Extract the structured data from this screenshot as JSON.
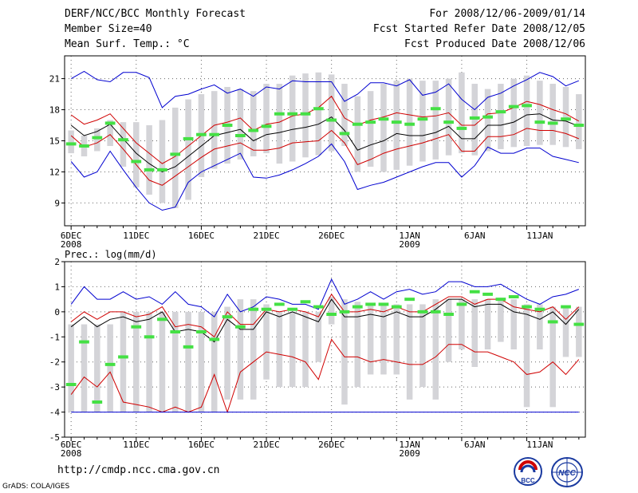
{
  "header": {
    "title": "DERF/NCC/BCC Monthly Forecast",
    "member_size": "Member Size=40",
    "variable": "Mean Surf. Temp.: °C",
    "period": "For 2008/12/06-2009/01/14",
    "refer_date": "Fcst Started Refer Date 2008/12/05",
    "produced_date": "Fcst Produced Date 2008/12/06"
  },
  "footer": {
    "url": "http://cmdp.ncc.cma.gov.cn",
    "grads": "GrADS: COLA/IGES",
    "logo_bcc": "BCC",
    "logo_ncc": "NCC"
  },
  "colors": {
    "box": "#d4d4d8",
    "median": "#44e044",
    "mean": "#000000",
    "spread": "#d00000",
    "extreme": "#0000d0"
  },
  "chart_data": [
    {
      "type": "line",
      "title": "Mean Surf. Temp.: °C",
      "ylabel": "°C",
      "x": [
        1,
        2,
        3,
        4,
        5,
        6,
        7,
        8,
        9,
        10,
        11,
        12,
        13,
        14,
        15,
        16,
        17,
        18,
        19,
        20,
        21,
        22,
        23,
        24,
        25,
        26,
        27,
        28,
        29,
        30,
        31,
        32,
        33,
        34,
        35,
        36,
        37,
        38,
        39,
        40
      ],
      "xlim": [
        0.5,
        40.5
      ],
      "ylim": [
        6.8,
        23.2
      ],
      "yticks": [
        9,
        12,
        15,
        18,
        21
      ],
      "xticks": [
        {
          "x": 1,
          "label": "6DEC",
          "sub": "2008"
        },
        {
          "x": 6,
          "label": "11DEC"
        },
        {
          "x": 11,
          "label": "16DEC"
        },
        {
          "x": 16,
          "label": "21DEC"
        },
        {
          "x": 21,
          "label": "26DEC"
        },
        {
          "x": 27,
          "label": "1JAN",
          "sub": "2009"
        },
        {
          "x": 32,
          "label": "6JAN"
        },
        {
          "x": 37,
          "label": "11JAN"
        }
      ],
      "box": {
        "low": [
          13.8,
          13.5,
          14.0,
          14.5,
          12.5,
          10.5,
          9.8,
          9.0,
          8.5,
          9.3,
          11.5,
          12.3,
          12.8,
          13.2,
          13.5,
          13.8,
          12.8,
          13.0,
          13.4,
          13.6,
          14.0,
          14.5,
          12.0,
          12.5,
          12.0,
          12.2,
          12.6,
          13.0,
          13.2,
          13.6,
          13.8,
          13.6,
          14.0,
          14.2,
          14.4,
          14.5,
          14.6,
          14.6,
          14.4,
          14.2
        ],
        "high": [
          16.0,
          15.5,
          16.2,
          17.0,
          16.8,
          16.8,
          16.5,
          17.0,
          18.2,
          19.0,
          19.5,
          19.8,
          20.2,
          20.0,
          19.8,
          20.5,
          20.5,
          21.3,
          21.5,
          21.6,
          21.4,
          20.5,
          19.3,
          19.8,
          20.5,
          20.8,
          21.0,
          20.8,
          20.8,
          21.0,
          21.6,
          20.5,
          20.0,
          20.5,
          21.0,
          21.3,
          20.8,
          20.5,
          20.2,
          19.5
        ]
      },
      "series": [
        {
          "name": "max",
          "color": "#0000d0",
          "values": [
            21.0,
            21.7,
            20.9,
            20.7,
            21.6,
            21.6,
            21.1,
            18.2,
            19.3,
            19.5,
            20.0,
            20.4,
            19.6,
            20.0,
            19.3,
            20.2,
            20.0,
            20.8,
            20.7,
            20.7,
            20.7,
            18.8,
            19.5,
            20.6,
            20.6,
            20.3,
            20.9,
            19.4,
            19.7,
            20.5,
            19.0,
            18.0,
            19.2,
            19.6,
            20.3,
            20.9,
            21.6,
            21.2,
            20.3,
            20.8
          ]
        },
        {
          "name": "mean_plus_sd",
          "color": "#d00000",
          "values": [
            17.5,
            16.6,
            17.0,
            17.6,
            16.2,
            14.8,
            13.8,
            12.8,
            13.5,
            14.5,
            15.5,
            16.5,
            16.8,
            17.2,
            16.0,
            16.6,
            16.8,
            17.4,
            17.6,
            18.2,
            19.3,
            17.2,
            16.5,
            17.0,
            17.3,
            17.7,
            17.5,
            17.3,
            17.4,
            17.7,
            16.5,
            16.5,
            17.6,
            17.7,
            18.2,
            18.8,
            18.5,
            18.0,
            17.6,
            16.9
          ]
        },
        {
          "name": "mean",
          "color": "#000000",
          "values": [
            16.5,
            15.5,
            15.9,
            16.6,
            15.2,
            13.8,
            12.8,
            12.0,
            12.5,
            13.5,
            14.5,
            15.5,
            15.8,
            16.1,
            15.0,
            15.6,
            15.8,
            16.1,
            16.3,
            16.6,
            17.3,
            16.0,
            14.1,
            14.6,
            15.0,
            15.7,
            15.5,
            15.5,
            15.8,
            16.4,
            15.2,
            15.2,
            16.5,
            16.5,
            16.8,
            17.5,
            17.6,
            17.0,
            16.9,
            16.4
          ]
        },
        {
          "name": "mean_minus_sd",
          "color": "#d00000",
          "values": [
            15.5,
            14.4,
            14.8,
            15.6,
            14.2,
            12.7,
            11.2,
            10.7,
            11.6,
            12.5,
            13.4,
            14.2,
            14.5,
            14.8,
            14.1,
            14.1,
            14.3,
            14.8,
            14.9,
            15.0,
            16.0,
            14.8,
            12.7,
            13.2,
            13.8,
            14.2,
            14.5,
            14.8,
            15.2,
            15.6,
            14.0,
            14.0,
            15.4,
            15.4,
            15.6,
            16.2,
            16.0,
            16.0,
            15.7,
            15.2
          ]
        },
        {
          "name": "min",
          "color": "#0000d0",
          "values": [
            13.0,
            11.5,
            12.0,
            14.0,
            12.2,
            10.5,
            9.0,
            8.3,
            8.6,
            11.0,
            12.0,
            12.6,
            13.2,
            13.8,
            11.5,
            11.4,
            11.7,
            12.2,
            12.8,
            13.5,
            14.7,
            13.0,
            10.3,
            10.7,
            11.0,
            11.5,
            12.0,
            12.5,
            12.9,
            12.9,
            11.5,
            12.6,
            14.4,
            13.8,
            13.8,
            14.3,
            14.3,
            13.5,
            13.2,
            12.9
          ]
        }
      ],
      "median": [
        14.7,
        14.5,
        15.3,
        16.7,
        15.1,
        13.0,
        12.2,
        12.2,
        13.7,
        15.2,
        15.6,
        15.6,
        16.5,
        15.5,
        16.0,
        16.4,
        17.6,
        17.6,
        17.6,
        18.1,
        17.0,
        15.7,
        16.6,
        16.8,
        17.1,
        16.8,
        16.6,
        17.1,
        18.1,
        16.8,
        16.2,
        17.2,
        17.3,
        17.8,
        18.3,
        18.4,
        16.8,
        16.7,
        17.1,
        16.5
      ]
    },
    {
      "type": "line",
      "title": "Prec.: log(mm/d)",
      "ylabel": "log(mm/d)",
      "x": [
        1,
        2,
        3,
        4,
        5,
        6,
        7,
        8,
        9,
        10,
        11,
        12,
        13,
        14,
        15,
        16,
        17,
        18,
        19,
        20,
        21,
        22,
        23,
        24,
        25,
        26,
        27,
        28,
        29,
        30,
        31,
        32,
        33,
        34,
        35,
        36,
        37,
        38,
        39,
        40
      ],
      "xlim": [
        0.5,
        40.5
      ],
      "ylim": [
        -5,
        2
      ],
      "yticks": [
        -5,
        -4,
        -3,
        -2,
        -1,
        0,
        1,
        2
      ],
      "xticks": [
        {
          "x": 1,
          "label": "6DEC",
          "sub": "2008"
        },
        {
          "x": 6,
          "label": "11DEC"
        },
        {
          "x": 11,
          "label": "16DEC"
        },
        {
          "x": 16,
          "label": "21DEC"
        },
        {
          "x": 21,
          "label": "26DEC"
        },
        {
          "x": 27,
          "label": "1JAN",
          "sub": "2009"
        },
        {
          "x": 32,
          "label": "6JAN"
        },
        {
          "x": 37,
          "label": "11JAN"
        }
      ],
      "box": {
        "low": [
          -4.0,
          -4.0,
          -4.0,
          -4.0,
          -4.0,
          -4.0,
          -4.0,
          -4.0,
          -4.0,
          -4.0,
          -4.0,
          -4.0,
          -3.5,
          -3.5,
          -3.5,
          -2.7,
          -3.0,
          -3.0,
          -3.0,
          -2.0,
          -0.5,
          -3.7,
          -3.0,
          -2.5,
          -2.5,
          -2.5,
          -3.5,
          -3.0,
          -3.5,
          -2.0,
          -1.5,
          -2.2,
          -1.5,
          -1.2,
          -1.5,
          -3.8,
          -1.5,
          -3.8,
          -1.8,
          -1.8
        ],
        "high": [
          -0.5,
          -0.5,
          -0.5,
          -0.5,
          0.0,
          0.0,
          0.0,
          0.0,
          0.0,
          0.0,
          0.0,
          0.0,
          0.2,
          0.5,
          0.5,
          0.3,
          0.0,
          0.0,
          0.0,
          0.0,
          0.6,
          0.5,
          0.4,
          0.3,
          0.3,
          0.3,
          0.3,
          0.3,
          0.5,
          0.5,
          0.5,
          0.5,
          0.5,
          0.5,
          0.5,
          0.3,
          0.3,
          0.2,
          0.2,
          0.2
        ]
      },
      "series": [
        {
          "name": "max",
          "color": "#0000d0",
          "values": [
            0.3,
            1.0,
            0.5,
            0.5,
            0.8,
            0.5,
            0.6,
            0.3,
            0.8,
            0.3,
            0.2,
            -0.2,
            0.7,
            0.0,
            0.2,
            0.6,
            0.5,
            0.3,
            0.3,
            0.1,
            1.3,
            0.3,
            0.5,
            0.8,
            0.5,
            0.8,
            0.9,
            0.7,
            0.8,
            1.2,
            1.2,
            1.0,
            1.0,
            1.1,
            0.8,
            0.5,
            0.3,
            0.6,
            0.7,
            0.9
          ]
        },
        {
          "name": "mean_plus_sd",
          "color": "#d00000",
          "values": [
            -0.4,
            0.0,
            -0.3,
            0.0,
            0.0,
            -0.2,
            -0.1,
            0.2,
            -0.6,
            -0.5,
            -0.6,
            -1.0,
            0.0,
            -0.5,
            -0.5,
            0.1,
            0.0,
            0.1,
            0.0,
            -0.2,
            0.7,
            0.0,
            0.0,
            0.1,
            0.0,
            0.2,
            0.0,
            0.0,
            0.3,
            0.6,
            0.6,
            0.3,
            0.5,
            0.5,
            0.2,
            0.1,
            0.0,
            0.2,
            -0.3,
            0.2
          ]
        },
        {
          "name": "mean",
          "color": "#000000",
          "values": [
            -0.6,
            -0.2,
            -0.6,
            -0.3,
            -0.2,
            -0.4,
            -0.3,
            0.0,
            -0.8,
            -0.7,
            -0.8,
            -1.2,
            -0.3,
            -0.7,
            -0.7,
            0.0,
            -0.2,
            0.0,
            -0.2,
            -0.4,
            0.5,
            -0.2,
            -0.2,
            -0.1,
            -0.2,
            0.0,
            -0.2,
            -0.2,
            0.1,
            0.5,
            0.5,
            0.2,
            0.3,
            0.3,
            0.0,
            -0.1,
            -0.3,
            0.0,
            -0.5,
            0.1
          ]
        },
        {
          "name": "mean_minus_sd",
          "color": "#d00000",
          "values": [
            -3.3,
            -2.6,
            -3.0,
            -2.4,
            -3.6,
            -3.7,
            -3.8,
            -4.0,
            -3.8,
            -4.0,
            -3.8,
            -2.5,
            -4.0,
            -2.4,
            -2.0,
            -1.6,
            -1.7,
            -1.8,
            -2.0,
            -2.7,
            -1.1,
            -1.8,
            -1.8,
            -2.0,
            -1.9,
            -2.0,
            -2.1,
            -2.1,
            -1.8,
            -1.3,
            -1.3,
            -1.6,
            -1.6,
            -1.8,
            -2.0,
            -2.5,
            -2.4,
            -2.0,
            -2.5,
            -1.9
          ]
        },
        {
          "name": "min",
          "color": "#0000d0",
          "values": [
            -4.0,
            -4.0,
            -4.0,
            -4.0,
            -4.0,
            -4.0,
            -4.0,
            -4.0,
            -4.0,
            -4.0,
            -4.0,
            -4.0,
            -4.0,
            -4.0,
            -4.0,
            -4.0,
            -4.0,
            -4.0,
            -4.0,
            -4.0,
            -4.0,
            -4.0,
            -4.0,
            -4.0,
            -4.0,
            -4.0,
            -4.0,
            -4.0,
            -4.0,
            -4.0,
            -4.0,
            -4.0,
            -4.0,
            -4.0,
            -4.0,
            -4.0,
            -4.0,
            -4.0,
            -4.0,
            -4.0
          ]
        }
      ],
      "median": [
        -2.9,
        -1.2,
        -3.6,
        -2.1,
        -1.8,
        -0.6,
        -1.0,
        -0.3,
        -0.8,
        -1.4,
        -0.8,
        -1.1,
        -0.2,
        -0.6,
        0.1,
        0.1,
        0.3,
        0.1,
        0.4,
        0.2,
        -0.1,
        0.0,
        0.2,
        0.3,
        0.3,
        0.2,
        0.5,
        0.0,
        0.0,
        -0.1,
        0.3,
        0.8,
        0.7,
        0.5,
        0.6,
        0.2,
        0.1,
        -0.4,
        0.2,
        -0.5
      ]
    }
  ]
}
